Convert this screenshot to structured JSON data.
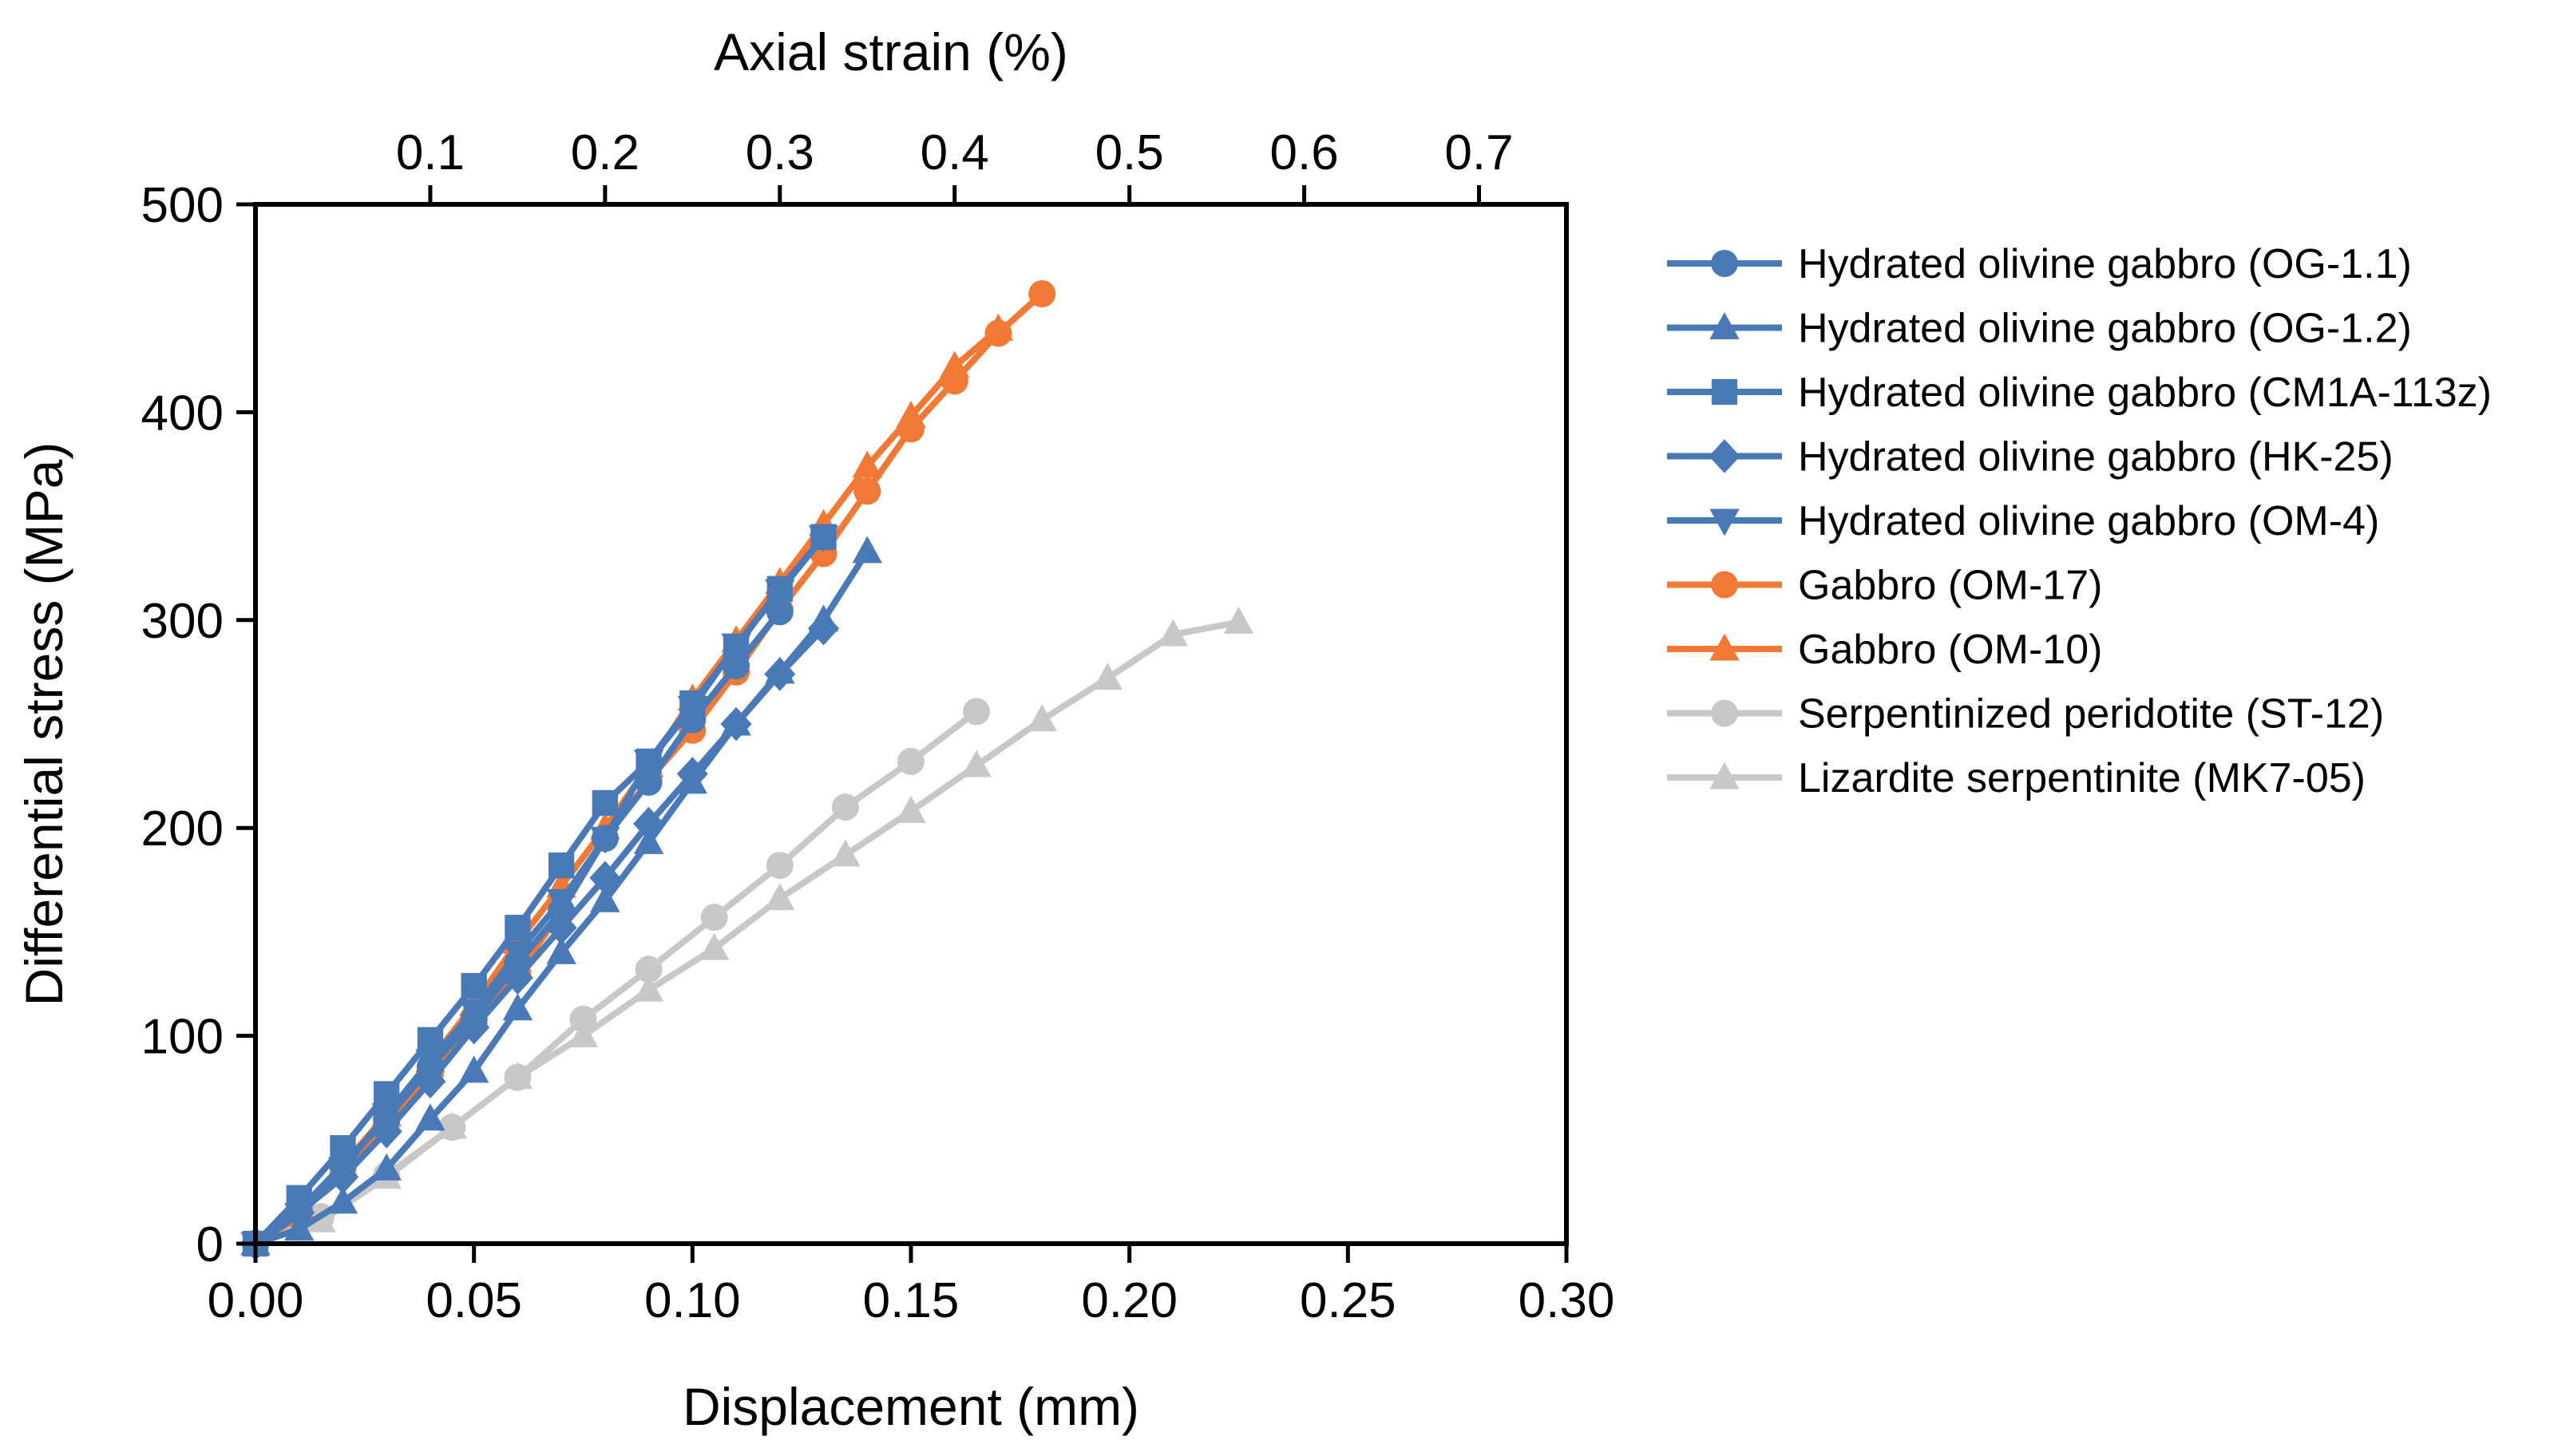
{
  "chart_data": {
    "type": "line",
    "xlabel": "Displacement (mm)",
    "ylabel": "Differential stress (MPa)",
    "x2label": "Axial strain (%)",
    "xlim": [
      0,
      0.3
    ],
    "ylim": [
      0,
      500
    ],
    "x2lim": [
      0,
      0.75
    ],
    "xticks": [
      0.0,
      0.05,
      0.1,
      0.15,
      0.2,
      0.25,
      0.3
    ],
    "xtick_labels": [
      "0.00",
      "0.05",
      "0.10",
      "0.15",
      "0.20",
      "0.25",
      "0.30"
    ],
    "yticks": [
      0,
      100,
      200,
      300,
      400,
      500
    ],
    "ytick_labels": [
      "0",
      "100",
      "200",
      "300",
      "400",
      "500"
    ],
    "x2ticks": [
      0.1,
      0.2,
      0.3,
      0.4,
      0.5,
      0.6,
      0.7
    ],
    "x2tick_labels": [
      "0.1",
      "0.2",
      "0.3",
      "0.4",
      "0.5",
      "0.6",
      "0.7"
    ],
    "grid": false,
    "legend_position": "outside-right",
    "series": [
      {
        "name": "Hydrated olivine gabbro (OG-1.1)",
        "color": "#4a79b8",
        "marker": "circle",
        "x": [
          0,
          0.01,
          0.02,
          0.03,
          0.04,
          0.05,
          0.06,
          0.07,
          0.08,
          0.09,
          0.1,
          0.11,
          0.12
        ],
        "y": [
          0,
          16,
          38,
          60,
          85,
          108,
          135,
          160,
          195,
          222,
          252,
          278,
          304
        ]
      },
      {
        "name": "Hydrated olivine gabbro (OG-1.2)",
        "color": "#4a79b8",
        "marker": "triangle-up",
        "x": [
          0,
          0.01,
          0.02,
          0.03,
          0.04,
          0.05,
          0.06,
          0.07,
          0.08,
          0.09,
          0.1,
          0.11,
          0.12,
          0.13,
          0.14
        ],
        "y": [
          0,
          7,
          20,
          36,
          60,
          83,
          113,
          140,
          165,
          193,
          222,
          250,
          275,
          300,
          333
        ]
      },
      {
        "name": "Hydrated olivine gabbro (CM1A-113z)",
        "color": "#4a79b8",
        "marker": "square",
        "x": [
          0,
          0.01,
          0.02,
          0.03,
          0.04,
          0.05,
          0.06,
          0.07,
          0.08,
          0.09,
          0.1,
          0.11,
          0.12,
          0.13
        ],
        "y": [
          0,
          22,
          46,
          72,
          98,
          124,
          152,
          182,
          212,
          232,
          260,
          287,
          315,
          340
        ]
      },
      {
        "name": "Hydrated olivine gabbro (HK-25)",
        "color": "#4a79b8",
        "marker": "diamond",
        "x": [
          0,
          0.01,
          0.02,
          0.03,
          0.04,
          0.05,
          0.06,
          0.07,
          0.08,
          0.09,
          0.1,
          0.11,
          0.12,
          0.13
        ],
        "y": [
          0,
          15,
          32,
          54,
          78,
          104,
          128,
          152,
          176,
          202,
          226,
          250,
          274,
          296
        ]
      },
      {
        "name": "Hydrated olivine gabbro (OM-4)",
        "color": "#4a79b8",
        "marker": "triangle-down",
        "x": [
          0,
          0.01,
          0.02,
          0.03,
          0.04,
          0.05,
          0.06,
          0.07,
          0.08,
          0.09,
          0.1,
          0.11,
          0.12,
          0.13
        ],
        "y": [
          0,
          14,
          36,
          62,
          88,
          112,
          140,
          165,
          195,
          232,
          258,
          288,
          314,
          340
        ]
      },
      {
        "name": "Gabbro (OM-17)",
        "color": "#f07a35",
        "marker": "circle",
        "x": [
          0,
          0.01,
          0.02,
          0.03,
          0.04,
          0.05,
          0.06,
          0.07,
          0.08,
          0.09,
          0.1,
          0.11,
          0.12,
          0.13,
          0.14,
          0.15,
          0.16,
          0.17,
          0.18
        ],
        "y": [
          0,
          13,
          36,
          58,
          82,
          106,
          130,
          160,
          195,
          223,
          247,
          275,
          305,
          332,
          362,
          392,
          415,
          438,
          457
        ]
      },
      {
        "name": "Gabbro (OM-10)",
        "color": "#f07a35",
        "marker": "triangle-up",
        "x": [
          0,
          0.01,
          0.02,
          0.03,
          0.04,
          0.05,
          0.06,
          0.07,
          0.08,
          0.09,
          0.1,
          0.11,
          0.12,
          0.13,
          0.14,
          0.15,
          0.16,
          0.17
        ],
        "y": [
          0,
          15,
          38,
          62,
          88,
          115,
          145,
          172,
          200,
          230,
          262,
          290,
          318,
          346,
          374,
          398,
          422,
          440
        ]
      },
      {
        "name": "Serpentinized peridotite (ST-12)",
        "color": "#c8c8c8",
        "marker": "circle",
        "x": [
          0,
          0.015,
          0.03,
          0.045,
          0.06,
          0.075,
          0.09,
          0.105,
          0.12,
          0.135,
          0.15,
          0.165
        ],
        "y": [
          0,
          13,
          33,
          56,
          80,
          108,
          132,
          157,
          182,
          210,
          232,
          256
        ]
      },
      {
        "name": "Lizardite serpentinite (MK7-05)",
        "color": "#c8c8c8",
        "marker": "triangle-up",
        "x": [
          0,
          0.015,
          0.03,
          0.045,
          0.06,
          0.075,
          0.09,
          0.105,
          0.12,
          0.135,
          0.15,
          0.165,
          0.18,
          0.195,
          0.21,
          0.225
        ],
        "y": [
          0,
          11,
          32,
          56,
          80,
          100,
          122,
          142,
          166,
          187,
          208,
          230,
          252,
          272,
          293,
          299
        ]
      }
    ]
  }
}
